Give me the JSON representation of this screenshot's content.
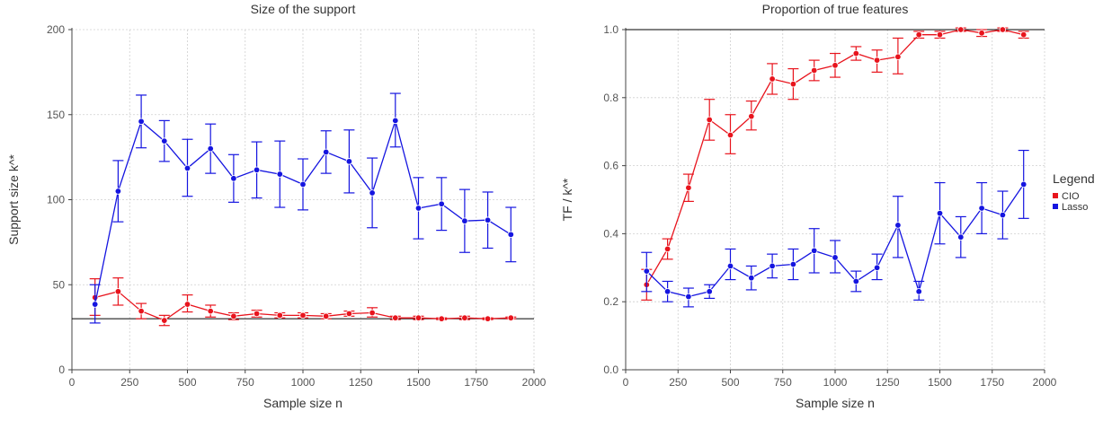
{
  "chart_data": [
    {
      "type": "line",
      "title": "Size of the support",
      "xlabel": "Sample size n",
      "ylabel": "Support size k^*",
      "xlim": [
        0,
        2000
      ],
      "ylim": [
        0,
        200
      ],
      "xticks": [
        0,
        250,
        500,
        750,
        1000,
        1250,
        1500,
        1750,
        2000
      ],
      "yticks": [
        0,
        50,
        100,
        150,
        200
      ],
      "grid": true,
      "hline": 30,
      "x": [
        100,
        200,
        300,
        400,
        500,
        600,
        700,
        800,
        900,
        1000,
        1100,
        1200,
        1300,
        1400,
        1500,
        1600,
        1700,
        1800,
        1900
      ],
      "series": [
        {
          "name": "CIO",
          "color": "#e8141d",
          "values": [
            42.5,
            46,
            34.5,
            29,
            38.5,
            34.5,
            31.5,
            33,
            32,
            32,
            31.5,
            33,
            33.5,
            30.5,
            30.5,
            30,
            30.5,
            30,
            30.5
          ],
          "lower": [
            32,
            38,
            30,
            26,
            34,
            31,
            29.5,
            31,
            30.5,
            30.5,
            30,
            31.5,
            31,
            29.5,
            29.5,
            29.5,
            29.5,
            29.5,
            30
          ],
          "upper": [
            53.5,
            54,
            39,
            32,
            44,
            38,
            33.5,
            35,
            33.5,
            33.5,
            33,
            34.5,
            36.5,
            31.5,
            31.5,
            30.5,
            31.5,
            30.5,
            31
          ]
        },
        {
          "name": "Lasso",
          "color": "#1515e0",
          "values": [
            38.5,
            105,
            146,
            134.5,
            118.5,
            130,
            112.5,
            117.5,
            115,
            109,
            128,
            122.5,
            104,
            146.5,
            95,
            97.5,
            87.5,
            88,
            79.5
          ],
          "lower": [
            27.5,
            87,
            130.5,
            122.5,
            102,
            115.5,
            98.5,
            101,
            95.5,
            94,
            115.5,
            104,
            83.5,
            131,
            77,
            82,
            69,
            71.5,
            63.5
          ],
          "upper": [
            50,
            123,
            161.5,
            146.5,
            135.5,
            144.5,
            126.5,
            134,
            134.5,
            124,
            140.5,
            141,
            124.5,
            162.5,
            113,
            113,
            106,
            104.5,
            95.5
          ]
        }
      ]
    },
    {
      "type": "line",
      "title": "Proportion of true features",
      "xlabel": "Sample size n",
      "ylabel": "TF / k^*",
      "xlim": [
        0,
        2000
      ],
      "ylim": [
        0,
        1.0
      ],
      "xticks": [
        0,
        250,
        500,
        750,
        1000,
        1250,
        1500,
        1750,
        2000
      ],
      "yticks": [
        0.0,
        0.2,
        0.4,
        0.6,
        0.8,
        1.0
      ],
      "grid": true,
      "hline": 1.0,
      "legend": {
        "title": "Legend",
        "placement": "right"
      },
      "x": [
        100,
        200,
        300,
        400,
        500,
        600,
        700,
        800,
        900,
        1000,
        1100,
        1200,
        1300,
        1400,
        1500,
        1600,
        1700,
        1800,
        1900
      ],
      "series": [
        {
          "name": "CIO",
          "color": "#e8141d",
          "values": [
            0.25,
            0.355,
            0.535,
            0.735,
            0.69,
            0.745,
            0.855,
            0.84,
            0.88,
            0.895,
            0.93,
            0.91,
            0.92,
            0.985,
            0.985,
            1.0,
            0.99,
            1.0,
            0.985
          ],
          "lower": [
            0.205,
            0.325,
            0.495,
            0.675,
            0.635,
            0.705,
            0.81,
            0.795,
            0.85,
            0.86,
            0.91,
            0.875,
            0.87,
            0.975,
            0.975,
            0.995,
            0.98,
            0.995,
            0.975
          ],
          "upper": [
            0.295,
            0.385,
            0.575,
            0.795,
            0.75,
            0.79,
            0.9,
            0.885,
            0.91,
            0.93,
            0.95,
            0.94,
            0.975,
            0.995,
            0.995,
            1.005,
            1.0,
            1.005,
            0.995
          ]
        },
        {
          "name": "Lasso",
          "color": "#1515e0",
          "values": [
            0.29,
            0.23,
            0.215,
            0.23,
            0.305,
            0.27,
            0.305,
            0.31,
            0.35,
            0.33,
            0.26,
            0.3,
            0.425,
            0.23,
            0.46,
            0.39,
            0.475,
            0.455,
            0.545
          ],
          "lower": [
            0.23,
            0.2,
            0.185,
            0.21,
            0.265,
            0.235,
            0.27,
            0.265,
            0.285,
            0.285,
            0.23,
            0.265,
            0.33,
            0.205,
            0.37,
            0.33,
            0.4,
            0.385,
            0.445
          ],
          "upper": [
            0.345,
            0.26,
            0.24,
            0.25,
            0.355,
            0.305,
            0.34,
            0.355,
            0.415,
            0.38,
            0.29,
            0.34,
            0.51,
            0.26,
            0.55,
            0.45,
            0.55,
            0.525,
            0.645
          ]
        }
      ]
    }
  ]
}
